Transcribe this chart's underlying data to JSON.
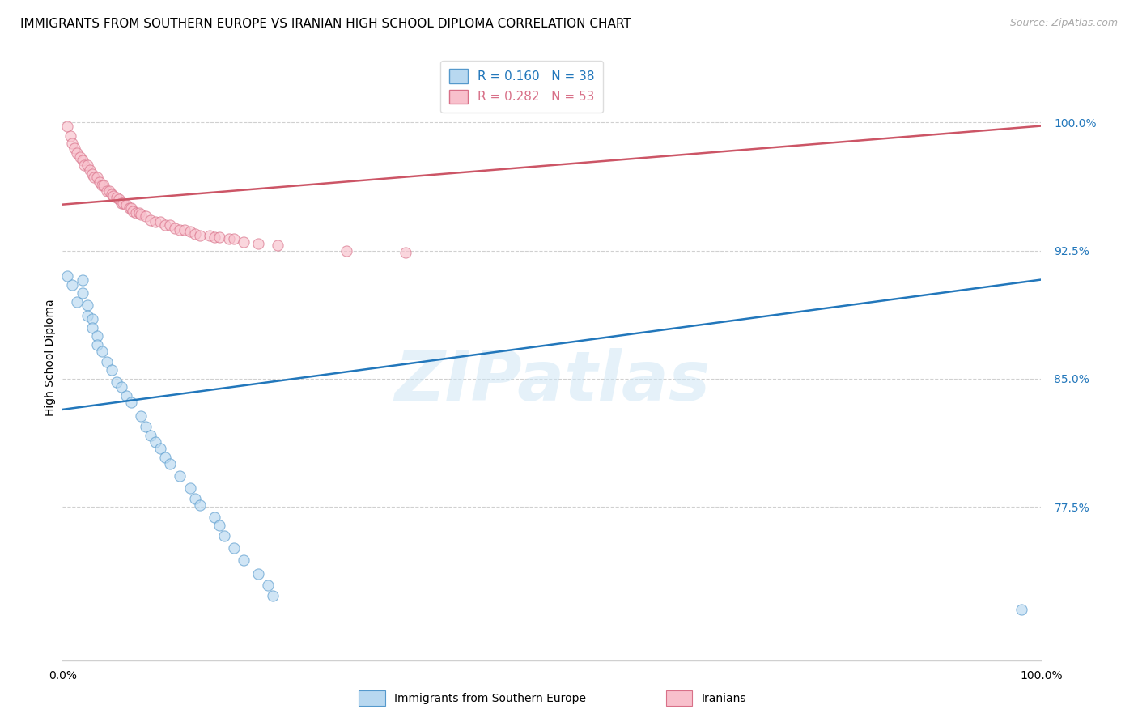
{
  "title": "IMMIGRANTS FROM SOUTHERN EUROPE VS IRANIAN HIGH SCHOOL DIPLOMA CORRELATION CHART",
  "source": "Source: ZipAtlas.com",
  "ylabel": "High School Diploma",
  "ytick_labels": [
    "77.5%",
    "85.0%",
    "92.5%",
    "100.0%"
  ],
  "ytick_values": [
    0.775,
    0.85,
    0.925,
    1.0
  ],
  "xlim": [
    0.0,
    1.0
  ],
  "ylim": [
    0.685,
    1.04
  ],
  "blue_R": 0.16,
  "blue_N": 38,
  "pink_R": 0.282,
  "pink_N": 53,
  "blue_face_color": "#b8d8f0",
  "pink_face_color": "#f8c0cc",
  "blue_edge_color": "#5599cc",
  "pink_edge_color": "#d87088",
  "blue_line_color": "#2277bb",
  "pink_line_color": "#cc5566",
  "legend_blue_label": "Immigrants from Southern Europe",
  "legend_pink_label": "Iranians",
  "watermark": "ZIPatlas",
  "blue_scatter_x": [
    0.005,
    0.01,
    0.015,
    0.02,
    0.02,
    0.025,
    0.025,
    0.03,
    0.03,
    0.035,
    0.035,
    0.04,
    0.045,
    0.05,
    0.055,
    0.06,
    0.065,
    0.07,
    0.08,
    0.085,
    0.09,
    0.095,
    0.1,
    0.105,
    0.11,
    0.12,
    0.13,
    0.135,
    0.14,
    0.155,
    0.16,
    0.165,
    0.175,
    0.185,
    0.2,
    0.21,
    0.215,
    0.98
  ],
  "blue_scatter_y": [
    0.91,
    0.905,
    0.895,
    0.908,
    0.9,
    0.893,
    0.887,
    0.885,
    0.88,
    0.875,
    0.87,
    0.866,
    0.86,
    0.855,
    0.848,
    0.845,
    0.84,
    0.836,
    0.828,
    0.822,
    0.817,
    0.813,
    0.809,
    0.804,
    0.8,
    0.793,
    0.786,
    0.78,
    0.776,
    0.769,
    0.764,
    0.758,
    0.751,
    0.744,
    0.736,
    0.729,
    0.723,
    0.715
  ],
  "pink_scatter_x": [
    0.005,
    0.008,
    0.01,
    0.012,
    0.015,
    0.018,
    0.02,
    0.022,
    0.025,
    0.028,
    0.03,
    0.032,
    0.035,
    0.038,
    0.04,
    0.042,
    0.045,
    0.048,
    0.05,
    0.052,
    0.055,
    0.058,
    0.06,
    0.062,
    0.065,
    0.068,
    0.07,
    0.072,
    0.075,
    0.078,
    0.08,
    0.085,
    0.09,
    0.095,
    0.1,
    0.105,
    0.11,
    0.115,
    0.12,
    0.125,
    0.13,
    0.135,
    0.14,
    0.15,
    0.155,
    0.16,
    0.17,
    0.175,
    0.185,
    0.2,
    0.22,
    0.29,
    0.35
  ],
  "pink_scatter_y": [
    0.998,
    0.992,
    0.988,
    0.985,
    0.982,
    0.98,
    0.978,
    0.975,
    0.975,
    0.972,
    0.97,
    0.968,
    0.968,
    0.965,
    0.963,
    0.963,
    0.96,
    0.96,
    0.958,
    0.957,
    0.956,
    0.955,
    0.953,
    0.953,
    0.952,
    0.95,
    0.95,
    0.948,
    0.947,
    0.947,
    0.946,
    0.945,
    0.943,
    0.942,
    0.942,
    0.94,
    0.94,
    0.938,
    0.937,
    0.937,
    0.936,
    0.935,
    0.934,
    0.934,
    0.933,
    0.933,
    0.932,
    0.932,
    0.93,
    0.929,
    0.928,
    0.925,
    0.924
  ],
  "blue_trend_x0": 0.0,
  "blue_trend_y0": 0.832,
  "blue_trend_x1": 1.0,
  "blue_trend_y1": 0.908,
  "pink_trend_x0": 0.0,
  "pink_trend_y0": 0.952,
  "pink_trend_x1": 1.0,
  "pink_trend_y1": 0.998,
  "background_color": "#ffffff",
  "grid_color": "#d0d0d0",
  "title_fontsize": 11,
  "axis_label_fontsize": 10,
  "tick_fontsize": 10,
  "legend_fontsize": 11,
  "source_fontsize": 9,
  "marker_size": 90,
  "marker_alpha": 0.65
}
